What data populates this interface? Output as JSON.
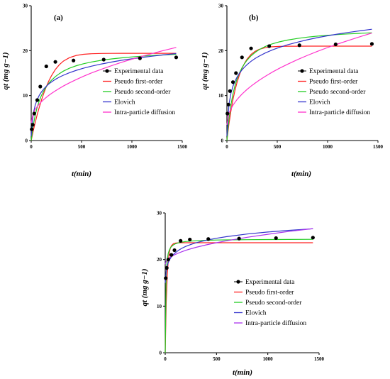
{
  "chart_data": [
    {
      "type": "line",
      "panel_label": "(a)",
      "title": "",
      "xlabel": "t(min)",
      "ylabel": "qt (mg g−1)",
      "xlim": [
        0,
        1500
      ],
      "ylim": [
        0,
        30
      ],
      "x_ticks": [
        "0",
        "500",
        "1000",
        "1500"
      ],
      "y_ticks": [
        "0",
        "10",
        "20",
        "30"
      ],
      "legend_position": "right",
      "series": [
        {
          "name": "Experimental data",
          "style": "markers",
          "color": "#000000",
          "x": [
            5,
            15,
            30,
            60,
            90,
            150,
            240,
            420,
            720,
            1080,
            1440
          ],
          "y": [
            2.5,
            3.5,
            6.0,
            9.0,
            12.0,
            16.5,
            17.5,
            17.8,
            18.0,
            18.3,
            18.5
          ]
        },
        {
          "name": "Pseudo first-order",
          "style": "line",
          "color": "#ff2020",
          "x": [
            0,
            20,
            40,
            60,
            80,
            100,
            125,
            150,
            175,
            200,
            240,
            280,
            320,
            380,
            450,
            520,
            600,
            700,
            800,
            900,
            1000,
            1100,
            1200,
            1300,
            1440
          ],
          "y": [
            0,
            2.09,
            4.02,
            5.78,
            7.4,
            8.88,
            10.53,
            11.98,
            13.25,
            14.36,
            15.82,
            16.88,
            17.67,
            18.44,
            18.95,
            19.18,
            19.31,
            19.37,
            19.39,
            19.4,
            19.4,
            19.4,
            19.4,
            19.4,
            19.4
          ]
        },
        {
          "name": "Pseudo second-order",
          "style": "line",
          "color": "#22cc22",
          "x": [
            0,
            20,
            40,
            60,
            80,
            100,
            125,
            150,
            175,
            200,
            240,
            280,
            320,
            380,
            450,
            520,
            600,
            700,
            800,
            900,
            1000,
            1100,
            1200,
            1300,
            1440
          ],
          "y": [
            0,
            3.29,
            5.66,
            7.44,
            8.83,
            9.95,
            11.07,
            11.98,
            12.74,
            13.38,
            14.22,
            14.89,
            15.44,
            16.09,
            16.66,
            17.09,
            17.48,
            17.86,
            18.16,
            18.4,
            18.6,
            18.76,
            18.91,
            19.03,
            19.18
          ]
        },
        {
          "name": "Elovich",
          "style": "line",
          "color": "#3333cc",
          "x": [
            0,
            20,
            40,
            60,
            80,
            100,
            125,
            150,
            175,
            200,
            240,
            280,
            320,
            380,
            450,
            520,
            600,
            700,
            800,
            900,
            1000,
            1100,
            1200,
            1300,
            1440
          ],
          "y": [
            1.0,
            5.87,
            7.91,
            9.15,
            10.05,
            10.75,
            11.48,
            12.07,
            12.58,
            13.01,
            13.61,
            14.11,
            14.53,
            15.09,
            15.63,
            16.09,
            16.55,
            17.04,
            17.47,
            17.85,
            18.18,
            18.48,
            18.76,
            19.02,
            19.35
          ]
        },
        {
          "name": "Intra-particle diffusion",
          "style": "line",
          "color": "#ff33cc",
          "x": [
            0,
            20,
            40,
            60,
            80,
            100,
            125,
            150,
            175,
            200,
            240,
            280,
            320,
            380,
            450,
            520,
            600,
            700,
            800,
            900,
            1000,
            1100,
            1200,
            1300,
            1440
          ],
          "y": [
            4.0,
            6.07,
            6.92,
            7.56,
            8.11,
            8.59,
            9.12,
            9.6,
            10.04,
            10.45,
            11.06,
            11.61,
            12.12,
            12.84,
            13.6,
            14.3,
            15.04,
            15.89,
            16.68,
            17.41,
            18.09,
            18.74,
            19.36,
            19.95,
            20.72
          ]
        }
      ]
    },
    {
      "type": "line",
      "panel_label": "(b)",
      "title": "",
      "xlabel": "t(min)",
      "ylabel": "qt (mg g−1)",
      "xlim": [
        0,
        1500
      ],
      "ylim": [
        0,
        30
      ],
      "x_ticks": [
        "0",
        "500",
        "1000",
        "1500"
      ],
      "y_ticks": [
        "0",
        "10",
        "20",
        "30"
      ],
      "legend_position": "right",
      "series": [
        {
          "name": "Experimental data",
          "style": "markers",
          "color": "#000000",
          "x": [
            5,
            15,
            30,
            60,
            90,
            150,
            240,
            420,
            720,
            1080,
            1440
          ],
          "y": [
            6.0,
            8.0,
            11.0,
            13.0,
            15.0,
            18.5,
            20.5,
            21.0,
            21.2,
            21.4,
            21.5
          ]
        },
        {
          "name": "Pseudo first-order",
          "style": "line",
          "color": "#ff2020",
          "x": [
            0,
            20,
            40,
            60,
            80,
            100,
            125,
            150,
            175,
            200,
            240,
            280,
            320,
            380,
            450,
            520,
            600,
            700,
            800,
            900,
            1000,
            1100,
            1200,
            1300,
            1440
          ],
          "y": [
            0,
            3.6,
            6.59,
            9.08,
            11.16,
            12.88,
            14.66,
            16.08,
            17.21,
            18.1,
            19.17,
            19.85,
            20.28,
            20.66,
            20.86,
            20.94,
            20.98,
            20.99,
            21.0,
            21.0,
            21.0,
            21.0,
            21.0,
            21.0,
            21.0
          ]
        },
        {
          "name": "Pseudo second-order",
          "style": "line",
          "color": "#22cc22",
          "x": [
            0,
            20,
            40,
            60,
            80,
            100,
            125,
            150,
            175,
            200,
            240,
            280,
            320,
            380,
            450,
            520,
            600,
            700,
            800,
            900,
            1000,
            1100,
            1200,
            1300,
            1440
          ],
          "y": [
            0,
            4.69,
            7.95,
            10.36,
            12.2,
            13.65,
            15.07,
            16.2,
            17.12,
            17.88,
            18.85,
            19.6,
            20.21,
            20.9,
            21.5,
            21.94,
            22.34,
            22.71,
            23.0,
            23.23,
            23.42,
            23.58,
            23.71,
            23.83,
            23.97
          ]
        },
        {
          "name": "Elovich",
          "style": "line",
          "color": "#3333cc",
          "x": [
            0,
            20,
            40,
            60,
            80,
            100,
            125,
            150,
            175,
            200,
            240,
            280,
            320,
            380,
            450,
            520,
            600,
            700,
            800,
            900,
            1000,
            1100,
            1200,
            1300,
            1440
          ],
          "y": [
            1.0,
            7.94,
            10.52,
            12.08,
            13.2,
            14.08,
            14.98,
            15.72,
            16.34,
            16.88,
            17.63,
            18.25,
            18.78,
            19.47,
            20.14,
            20.71,
            21.28,
            21.89,
            22.42,
            22.89,
            23.31,
            23.69,
            24.03,
            24.35,
            24.76
          ]
        },
        {
          "name": "Intra-particle diffusion",
          "style": "line",
          "color": "#ff33cc",
          "x": [
            0,
            20,
            40,
            60,
            80,
            100,
            125,
            150,
            175,
            200,
            240,
            280,
            320,
            380,
            450,
            520,
            600,
            700,
            800,
            900,
            1000,
            1100,
            1200,
            1300,
            1440
          ],
          "y": [
            3.5,
            6.01,
            7.04,
            7.83,
            8.5,
            9.09,
            9.74,
            10.33,
            10.87,
            11.37,
            12.11,
            12.78,
            13.4,
            14.28,
            15.2,
            16.05,
            16.95,
            17.99,
            18.95,
            19.84,
            20.68,
            21.47,
            22.22,
            22.95,
            23.9
          ]
        }
      ]
    },
    {
      "type": "line",
      "panel_label": "(c)",
      "title": "",
      "xlabel": "t(min)",
      "ylabel": "qt (mg g−1)",
      "xlim": [
        0,
        1500
      ],
      "ylim": [
        0,
        30
      ],
      "x_ticks": [
        "0",
        "500",
        "1000",
        "1500"
      ],
      "y_ticks": [
        "0",
        "10",
        "20",
        "30"
      ],
      "legend_position": "center-right",
      "series": [
        {
          "name": "Experimental data",
          "style": "markers",
          "color": "#000000",
          "x": [
            5,
            15,
            30,
            60,
            90,
            150,
            240,
            420,
            720,
            1080,
            1440
          ],
          "y": [
            16.0,
            18.2,
            20.0,
            21.0,
            22.0,
            24.0,
            24.3,
            24.4,
            24.5,
            24.6,
            24.7
          ]
        },
        {
          "name": "Pseudo first-order",
          "style": "line",
          "color": "#ff2020",
          "x": [
            0,
            10,
            20,
            30,
            40,
            50,
            60,
            80,
            100,
            130,
            160,
            200,
            250,
            300,
            400,
            500,
            600,
            800,
            1000,
            1200,
            1440
          ],
          "y": [
            0,
            10.72,
            16.57,
            19.76,
            21.5,
            22.45,
            22.97,
            23.4,
            23.53,
            23.59,
            23.6,
            23.6,
            23.6,
            23.6,
            23.6,
            23.6,
            23.6,
            23.6,
            23.6,
            23.6,
            23.6
          ]
        },
        {
          "name": "Pseudo second-order",
          "style": "line",
          "color": "#22cc22",
          "x": [
            0,
            10,
            20,
            30,
            40,
            50,
            60,
            80,
            100,
            130,
            160,
            200,
            250,
            300,
            400,
            500,
            600,
            800,
            1000,
            1200,
            1440
          ],
          "y": [
            0,
            17.04,
            20.1,
            21.35,
            22.03,
            22.46,
            22.76,
            23.14,
            23.37,
            23.59,
            23.73,
            23.86,
            23.96,
            24.03,
            24.12,
            24.18,
            24.21,
            24.26,
            24.29,
            24.31,
            24.33
          ]
        },
        {
          "name": "Elovich",
          "style": "line",
          "color": "#3333cc",
          "x": [
            0,
            10,
            20,
            30,
            40,
            50,
            60,
            80,
            100,
            130,
            160,
            200,
            250,
            300,
            400,
            500,
            600,
            800,
            1000,
            1200,
            1440
          ],
          "y": [
            15.0,
            17.63,
            18.67,
            19.34,
            19.84,
            20.23,
            20.56,
            21.08,
            21.49,
            21.99,
            22.38,
            22.81,
            23.24,
            23.59,
            24.14,
            24.57,
            24.92,
            25.48,
            25.91,
            26.26,
            26.61
          ]
        },
        {
          "name": "Intra-particle diffusion",
          "style": "line",
          "color": "#aa33ee",
          "x": [
            0,
            10,
            20,
            30,
            40,
            50,
            60,
            80,
            100,
            130,
            160,
            200,
            250,
            300,
            400,
            500,
            600,
            800,
            1000,
            1200,
            1440
          ],
          "y": [
            19.0,
            19.66,
            19.93,
            20.15,
            20.33,
            20.49,
            20.63,
            20.88,
            21.1,
            21.39,
            21.66,
            21.97,
            22.31,
            22.62,
            23.15,
            23.61,
            24.03,
            24.77,
            25.42,
            26.01,
            26.64
          ]
        }
      ]
    }
  ]
}
